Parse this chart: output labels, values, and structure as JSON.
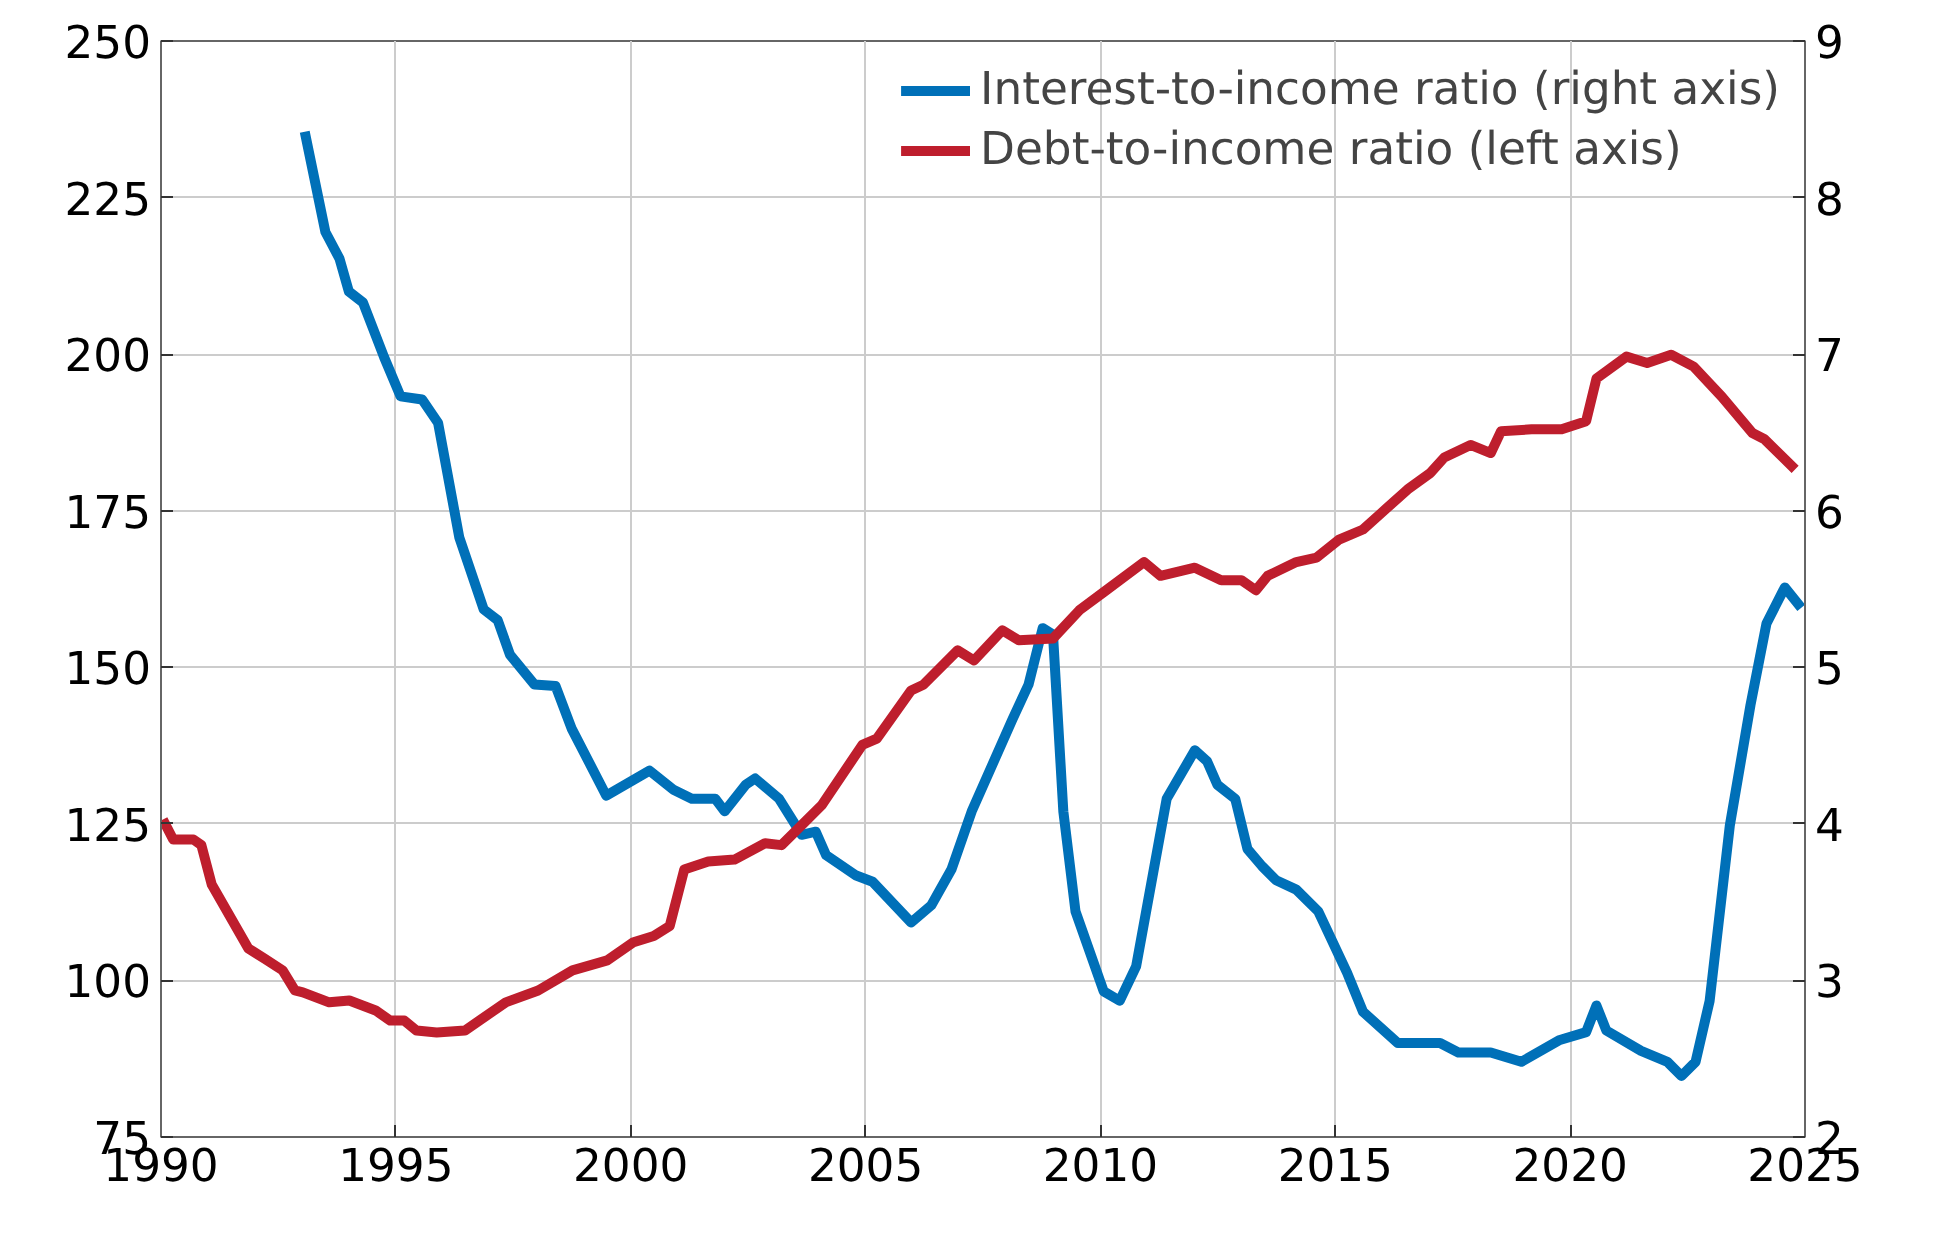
{
  "chart_data": {
    "type": "line",
    "xlim": [
      1990,
      2025
    ],
    "xticks": [
      1990,
      1995,
      2000,
      2005,
      2010,
      2015,
      2020,
      2025
    ],
    "ylim": [
      75,
      250
    ],
    "yticks": [
      75,
      100,
      125,
      150,
      175,
      200,
      225,
      250
    ],
    "y2lim": [
      2,
      9
    ],
    "y2ticks": [
      2,
      3,
      4,
      5,
      6,
      7,
      8,
      9
    ],
    "grid": true,
    "legend": "top right",
    "marker": "none",
    "line_style": "solid",
    "series": [
      {
        "name": "Interest-to-income ratio (right axis)",
        "color": "#0070b8",
        "axis": "y2",
        "x": [
          1993.06,
          1993.5,
          1993.8,
          1994.0,
          1994.3,
          1994.75,
          1995.1,
          1995.56,
          1995.9,
          1996.35,
          1996.87,
          1997.17,
          1997.43,
          1997.95,
          1998.4,
          1998.74,
          1999.48,
          2000.4,
          2000.9,
          2001.3,
          2001.8,
          2002.0,
          2002.45,
          2002.65,
          2003.16,
          2003.64,
          2003.94,
          2004.16,
          2004.8,
          2005.15,
          2005.97,
          2006.4,
          2006.83,
          2007.26,
          2008.13,
          2008.47,
          2008.77,
          2008.99,
          2009.21,
          2009.47,
          2010.07,
          2010.41,
          2010.76,
          2011.41,
          2012.01,
          2012.27,
          2012.49,
          2012.87,
          2013.13,
          2013.44,
          2013.74,
          2014.17,
          2014.64,
          2015.25,
          2015.59,
          2016.33,
          2017.23,
          2017.62,
          2018.31,
          2018.96,
          2019.78,
          2020.34,
          2020.56,
          2020.77,
          2021.51,
          2022.07,
          2022.37,
          2022.67,
          2022.97,
          2023.4,
          2023.84,
          2024.18,
          2024.57,
          2024.92
        ],
        "values": [
          8.42,
          7.78,
          7.61,
          7.4,
          7.33,
          6.98,
          6.73,
          6.71,
          6.56,
          5.83,
          5.37,
          5.3,
          5.08,
          4.89,
          4.88,
          4.61,
          4.18,
          4.34,
          4.22,
          4.16,
          4.16,
          4.08,
          4.25,
          4.29,
          4.16,
          3.93,
          3.95,
          3.8,
          3.67,
          3.63,
          3.37,
          3.48,
          3.71,
          4.08,
          4.67,
          4.89,
          5.25,
          5.21,
          4.08,
          3.44,
          2.93,
          2.87,
          3.09,
          4.16,
          4.47,
          4.4,
          4.25,
          4.16,
          3.84,
          3.73,
          3.64,
          3.58,
          3.44,
          3.05,
          2.8,
          2.6,
          2.6,
          2.54,
          2.54,
          2.48,
          2.62,
          2.67,
          2.84,
          2.68,
          2.55,
          2.48,
          2.39,
          2.48,
          2.87,
          3.99,
          4.76,
          5.28,
          5.51,
          5.38
        ]
      },
      {
        "name": "Debt-to-income ratio (left axis)",
        "color": "#be1e2d",
        "x": [
          1990.04,
          1990.26,
          1990.69,
          1990.86,
          1991.08,
          1991.86,
          1992.2,
          1992.59,
          1992.85,
          1993.02,
          1993.58,
          1994.01,
          1994.57,
          1994.88,
          1995.18,
          1995.44,
          1995.87,
          1996.47,
          1997.34,
          1998.03,
          1998.76,
          1999.5,
          2000.06,
          2000.49,
          2000.83,
          2001.14,
          2001.65,
          2002.21,
          2002.86,
          2003.21,
          2003.64,
          2004.07,
          2004.93,
          2005.24,
          2005.97,
          2006.23,
          2006.96,
          2007.31,
          2007.91,
          2008.26,
          2008.99,
          2009.55,
          2010.07,
          2010.93,
          2011.28,
          2012.01,
          2012.57,
          2013.0,
          2013.31,
          2013.56,
          2014.17,
          2014.6,
          2015.08,
          2015.59,
          2016.11,
          2016.54,
          2017.02,
          2017.32,
          2017.88,
          2018.31,
          2018.53,
          2019.18,
          2019.82,
          2020.34,
          2020.56,
          2021.2,
          2021.64,
          2022.15,
          2022.63,
          2023.23,
          2023.88,
          2024.14,
          2024.79
        ],
        "values": [
          125.7,
          122.5,
          122.5,
          121.6,
          115.3,
          105.1,
          103.5,
          101.6,
          98.4,
          98.1,
          96.5,
          96.8,
          95.2,
          93.6,
          93.6,
          92.0,
          91.7,
          92.0,
          96.5,
          98.4,
          101.6,
          103.2,
          106.1,
          107.1,
          108.7,
          117.7,
          119.0,
          119.3,
          121.9,
          121.6,
          124.8,
          128.0,
          137.6,
          138.6,
          146.3,
          147.2,
          152.7,
          151.1,
          155.9,
          154.3,
          154.6,
          159.1,
          162.0,
          166.8,
          164.6,
          165.9,
          163.9,
          163.9,
          162.3,
          164.6,
          166.8,
          167.5,
          170.4,
          172.0,
          175.5,
          178.4,
          181.0,
          183.5,
          185.5,
          184.2,
          187.7,
          188.0,
          188.0,
          189.3,
          196.1,
          199.6,
          198.6,
          199.9,
          198.0,
          193.2,
          187.4,
          186.4,
          181.6
        ]
      }
    ]
  }
}
